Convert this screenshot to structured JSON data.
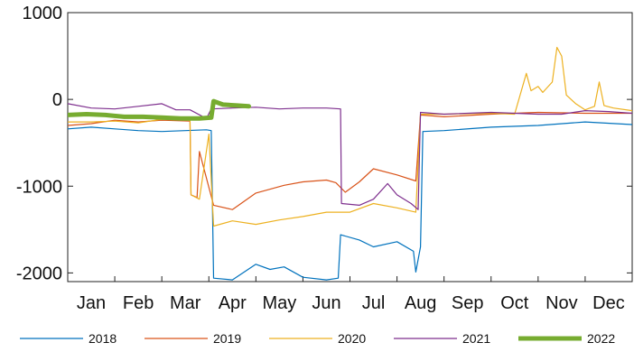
{
  "chart_data": {
    "type": "line",
    "title": "",
    "xlabel": "",
    "ylabel": "",
    "x_categories": [
      "Jan",
      "Feb",
      "Mar",
      "Apr",
      "May",
      "Jun",
      "Jul",
      "Aug",
      "Sep",
      "Oct",
      "Nov",
      "Dec"
    ],
    "x_range": [
      0,
      12
    ],
    "ylim": [
      -2100,
      1000
    ],
    "y_ticks": [
      1000,
      0,
      -1000,
      -2000
    ],
    "y_tick_labels": [
      "1000",
      "0",
      "-1000",
      "-2000"
    ],
    "grid": false,
    "legend_position": "bottom",
    "series": [
      {
        "name": "2018",
        "color": "#0072BD",
        "line_width": 1.2,
        "points": [
          [
            0,
            -340
          ],
          [
            0.5,
            -320
          ],
          [
            1,
            -340
          ],
          [
            1.5,
            -360
          ],
          [
            2,
            -370
          ],
          [
            2.5,
            -360
          ],
          [
            2.95,
            -350
          ],
          [
            3.05,
            -360
          ],
          [
            3.1,
            -2060
          ],
          [
            3.5,
            -2080
          ],
          [
            4,
            -1900
          ],
          [
            4.3,
            -1960
          ],
          [
            4.6,
            -1930
          ],
          [
            5,
            -2050
          ],
          [
            5.5,
            -2080
          ],
          [
            5.75,
            -2060
          ],
          [
            5.8,
            -1560
          ],
          [
            6.2,
            -1620
          ],
          [
            6.5,
            -1700
          ],
          [
            7,
            -1640
          ],
          [
            7.35,
            -1750
          ],
          [
            7.4,
            -1990
          ],
          [
            7.5,
            -1700
          ],
          [
            7.55,
            -370
          ],
          [
            8,
            -360
          ],
          [
            9,
            -320
          ],
          [
            10,
            -300
          ],
          [
            11,
            -260
          ],
          [
            12,
            -290
          ]
        ]
      },
      {
        "name": "2019",
        "color": "#D95319",
        "line_width": 1.2,
        "points": [
          [
            0,
            -300
          ],
          [
            0.5,
            -280
          ],
          [
            1,
            -240
          ],
          [
            1.5,
            -260
          ],
          [
            2,
            -240
          ],
          [
            2.6,
            -250
          ],
          [
            2.62,
            -1100
          ],
          [
            2.75,
            -1130
          ],
          [
            2.8,
            -600
          ],
          [
            3.1,
            -1220
          ],
          [
            3.5,
            -1270
          ],
          [
            4,
            -1080
          ],
          [
            4.6,
            -990
          ],
          [
            5,
            -950
          ],
          [
            5.5,
            -930
          ],
          [
            5.7,
            -960
          ],
          [
            5.9,
            -1070
          ],
          [
            6.2,
            -950
          ],
          [
            6.5,
            -800
          ],
          [
            7,
            -870
          ],
          [
            7.4,
            -940
          ],
          [
            7.5,
            -180
          ],
          [
            8,
            -200
          ],
          [
            9,
            -170
          ],
          [
            10,
            -150
          ],
          [
            11,
            -160
          ],
          [
            12,
            -160
          ]
        ]
      },
      {
        "name": "2020",
        "color": "#EDB120",
        "line_width": 1.2,
        "points": [
          [
            0,
            -260
          ],
          [
            0.5,
            -260
          ],
          [
            1,
            -250
          ],
          [
            1.5,
            -270
          ],
          [
            2,
            -230
          ],
          [
            2.6,
            -240
          ],
          [
            2.62,
            -1100
          ],
          [
            2.8,
            -1150
          ],
          [
            3,
            -400
          ],
          [
            3.1,
            -1460
          ],
          [
            3.5,
            -1400
          ],
          [
            4,
            -1440
          ],
          [
            4.5,
            -1390
          ],
          [
            5,
            -1350
          ],
          [
            5.5,
            -1300
          ],
          [
            6,
            -1300
          ],
          [
            6.5,
            -1200
          ],
          [
            7,
            -1250
          ],
          [
            7.4,
            -1300
          ],
          [
            7.5,
            -170
          ],
          [
            8,
            -170
          ],
          [
            9,
            -160
          ],
          [
            9.5,
            -170
          ],
          [
            9.75,
            300
          ],
          [
            9.85,
            100
          ],
          [
            10,
            150
          ],
          [
            10.1,
            80
          ],
          [
            10.3,
            200
          ],
          [
            10.4,
            600
          ],
          [
            10.5,
            500
          ],
          [
            10.6,
            50
          ],
          [
            10.8,
            -50
          ],
          [
            11,
            -120
          ],
          [
            11.2,
            -80
          ],
          [
            11.3,
            200
          ],
          [
            11.4,
            -70
          ],
          [
            11.6,
            -100
          ],
          [
            12,
            -130
          ]
        ]
      },
      {
        "name": "2021",
        "color": "#7E2F8E",
        "line_width": 1.2,
        "points": [
          [
            0,
            -50
          ],
          [
            0.5,
            -100
          ],
          [
            1,
            -110
          ],
          [
            1.5,
            -80
          ],
          [
            2,
            -50
          ],
          [
            2.3,
            -120
          ],
          [
            2.6,
            -120
          ],
          [
            2.95,
            -220
          ],
          [
            3.05,
            -110
          ],
          [
            3.5,
            -100
          ],
          [
            4,
            -90
          ],
          [
            4.5,
            -110
          ],
          [
            5,
            -100
          ],
          [
            5.5,
            -100
          ],
          [
            5.8,
            -110
          ],
          [
            5.82,
            -1200
          ],
          [
            6.2,
            -1220
          ],
          [
            6.5,
            -1150
          ],
          [
            6.8,
            -970
          ],
          [
            7,
            -1100
          ],
          [
            7.3,
            -1200
          ],
          [
            7.45,
            -1270
          ],
          [
            7.5,
            -150
          ],
          [
            8,
            -170
          ],
          [
            9,
            -150
          ],
          [
            10,
            -170
          ],
          [
            10.5,
            -170
          ],
          [
            11,
            -130
          ],
          [
            11.5,
            -140
          ],
          [
            12,
            -160
          ]
        ]
      },
      {
        "name": "2022",
        "color": "#77AC30",
        "line_width": 5,
        "points": [
          [
            0,
            -180
          ],
          [
            0.4,
            -170
          ],
          [
            0.8,
            -180
          ],
          [
            1.2,
            -200
          ],
          [
            1.6,
            -200
          ],
          [
            2,
            -210
          ],
          [
            2.4,
            -220
          ],
          [
            2.8,
            -220
          ],
          [
            3.05,
            -210
          ],
          [
            3.1,
            -20
          ],
          [
            3.3,
            -60
          ],
          [
            3.6,
            -70
          ],
          [
            3.85,
            -80
          ]
        ]
      }
    ]
  }
}
